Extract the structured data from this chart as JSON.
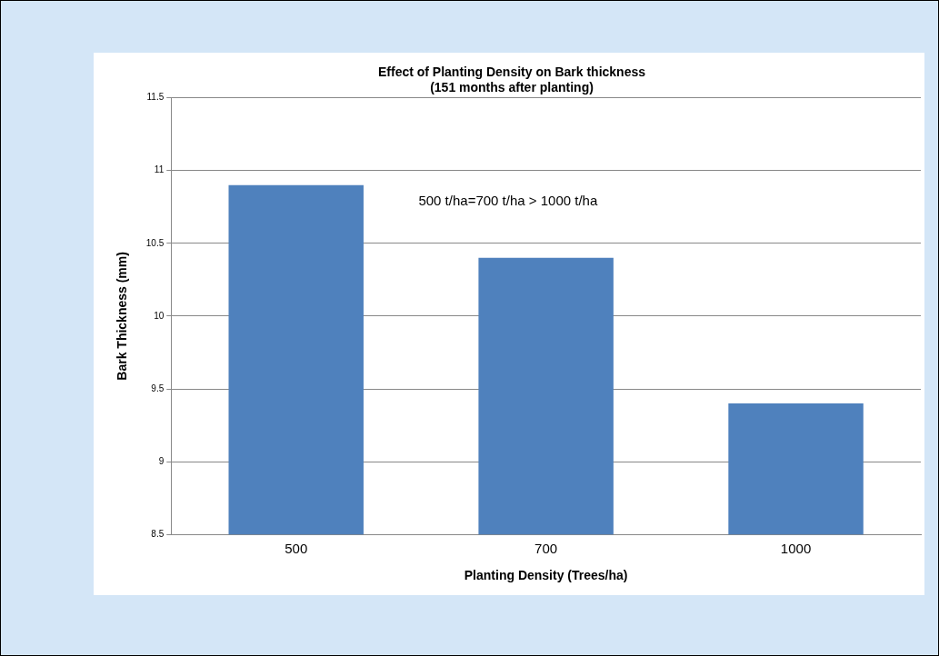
{
  "chart_data": {
    "type": "bar",
    "title": "Effect of Planting Density on Bark thickness",
    "subtitle": "(151 months after planting)",
    "xlabel": "Planting Density (Trees/ha)",
    "ylabel": "Bark Thickness (mm)",
    "categories": [
      "500",
      "700",
      "1000"
    ],
    "values": [
      10.9,
      10.4,
      9.4
    ],
    "color": "#4f81bd",
    "ylim": [
      8.5,
      11.5
    ],
    "yticks": [
      8.5,
      9,
      9.5,
      10,
      10.5,
      11,
      11.5
    ],
    "grid": "y",
    "annotations": [
      "500 t/ha=700 t/ha > 1000 t/ha"
    ]
  }
}
